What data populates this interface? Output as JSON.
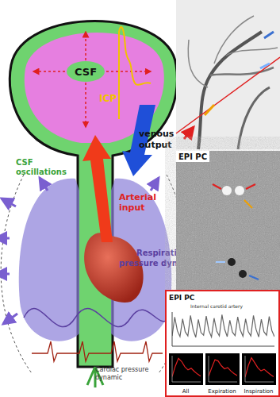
{
  "diagram": {
    "head": {
      "csf": "CSF",
      "icp": "ICP"
    },
    "labels": {
      "venous": [
        "venous",
        "output"
      ],
      "csf_oscillations": [
        "CSF",
        "oscillations"
      ],
      "arterial": [
        "Arterial",
        "input"
      ],
      "respiration": [
        "Respiration",
        "pressure dynamic"
      ],
      "cardiac": [
        "Cardiac pressure",
        "dynamic"
      ]
    },
    "images": {
      "epi_pc": "EPI PC"
    }
  },
  "chart_data": [
    {
      "type": "line",
      "title": "EPI PC",
      "subtitle": "Internal carotid artery",
      "x": [
        0,
        1,
        2,
        3,
        4,
        5,
        6,
        7,
        8,
        9,
        10,
        11,
        12,
        13,
        14,
        15,
        16,
        17,
        18,
        19,
        20,
        21,
        22,
        23,
        24,
        25,
        26,
        27,
        28,
        29,
        30,
        31,
        32,
        33,
        34,
        35,
        36,
        37,
        38,
        39
      ],
      "values": [
        30,
        85,
        45,
        28,
        80,
        42,
        30,
        90,
        48,
        26,
        78,
        40,
        32,
        88,
        46,
        27,
        82,
        44,
        30,
        92,
        50,
        28,
        76,
        41,
        31,
        86,
        47,
        29,
        80,
        43,
        30,
        90,
        49,
        27,
        79,
        42,
        32,
        87,
        46,
        28
      ],
      "color": "#666666",
      "xlim": [
        0,
        39
      ],
      "ylim": [
        0,
        100
      ],
      "tick_labels": false
    },
    {
      "type": "line",
      "title": "All",
      "x": [
        0,
        1,
        2,
        3,
        4,
        5,
        6,
        7,
        8,
        9
      ],
      "values": [
        20,
        60,
        90,
        78,
        58,
        46,
        52,
        40,
        30,
        22
      ],
      "color": "#e02020",
      "xlim": [
        0,
        9
      ],
      "ylim": [
        0,
        100
      ],
      "tick_labels": false
    },
    {
      "type": "line",
      "title": "Expiration",
      "x": [
        0,
        1,
        2,
        3,
        4,
        5,
        6,
        7,
        8,
        9
      ],
      "values": [
        22,
        55,
        85,
        80,
        62,
        50,
        55,
        42,
        32,
        24
      ],
      "color": "#e02020",
      "xlim": [
        0,
        9
      ],
      "ylim": [
        0,
        100
      ],
      "tick_labels": false
    },
    {
      "type": "line",
      "title": "Inspiration",
      "x": [
        0,
        1,
        2,
        3,
        4,
        5,
        6,
        7,
        8,
        9
      ],
      "values": [
        18,
        62,
        92,
        74,
        54,
        42,
        48,
        38,
        28,
        20
      ],
      "color": "#e02020",
      "xlim": [
        0,
        9
      ],
      "ylim": [
        0,
        100
      ],
      "tick_labels": false
    }
  ]
}
